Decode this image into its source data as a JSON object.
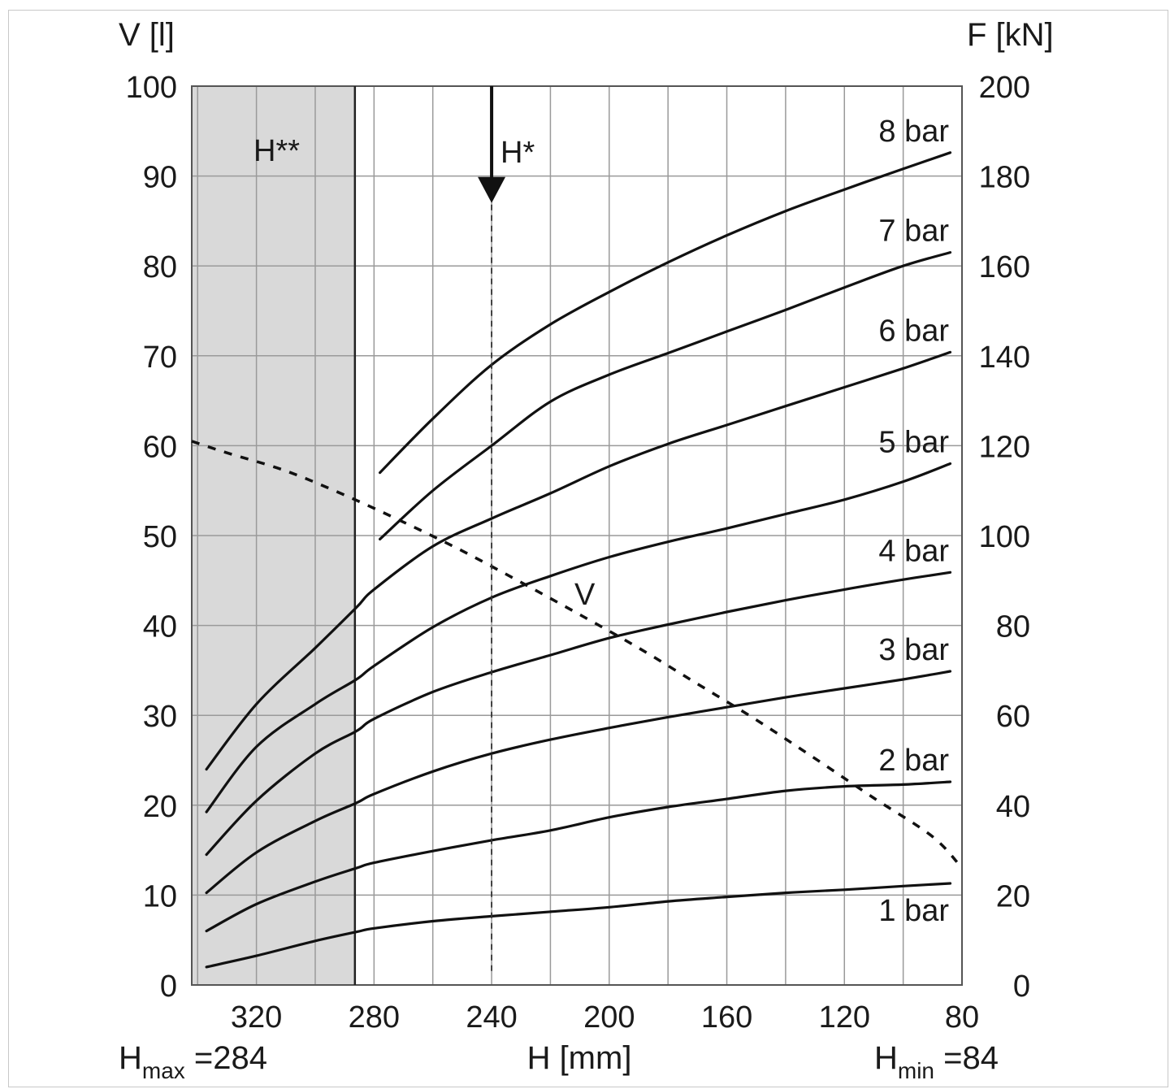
{
  "chart_data": {
    "type": "line",
    "title": "",
    "xlabel": "H [mm]",
    "ylabel_left": "V [l]",
    "ylabel_right": "F [kN]",
    "x_reversed": true,
    "xlim": [
      342,
      80
    ],
    "ylim_left": [
      0,
      100
    ],
    "ylim_right": [
      0,
      200
    ],
    "grid": true,
    "x_ticks": [
      320,
      280,
      240,
      200,
      160,
      120,
      80
    ],
    "y_left_ticks": [
      0,
      10,
      20,
      30,
      40,
      50,
      60,
      70,
      80,
      90,
      100
    ],
    "y_right_ticks": [
      0,
      20,
      40,
      60,
      80,
      100,
      120,
      140,
      160,
      180,
      200
    ],
    "shaded_region": {
      "label": "H**",
      "x_from": 342,
      "x_to": 286.5,
      "color": "#d9d9d9"
    },
    "h_star": {
      "label": "H*",
      "x": 240,
      "arrow_from_y": 100,
      "arrow_to_y": 87,
      "dashed_to_y": 1.5
    },
    "volume_curve": {
      "name": "V",
      "axis": "left",
      "style": "dashed",
      "x": [
        342,
        330,
        310,
        290,
        270,
        250,
        230,
        210,
        190,
        170,
        150,
        130,
        110,
        90,
        80
      ],
      "values": [
        60.5,
        59.2,
        57.2,
        54.5,
        51.5,
        48.3,
        44.8,
        41.2,
        37.5,
        33.5,
        29.5,
        25.2,
        20.8,
        16.5,
        13.0
      ]
    },
    "series": [
      {
        "name": "1 bar",
        "axis": "right",
        "x": [
          337,
          320,
          300,
          286,
          280,
          260,
          240,
          220,
          200,
          180,
          160,
          140,
          120,
          100,
          84
        ],
        "values": [
          4,
          6.5,
          9.8,
          11.8,
          12.6,
          14.2,
          15.3,
          16.3,
          17.3,
          18.6,
          19.6,
          20.5,
          21.2,
          22.0,
          22.6
        ]
      },
      {
        "name": "2 bar",
        "axis": "right",
        "x": [
          337,
          320,
          300,
          286,
          280,
          260,
          240,
          220,
          200,
          180,
          160,
          140,
          120,
          100,
          84
        ],
        "values": [
          12,
          18,
          23,
          26,
          27.2,
          29.8,
          32.2,
          34.4,
          37.3,
          39.6,
          41.4,
          43.2,
          44.2,
          44.6,
          45.2
        ]
      },
      {
        "name": "3 bar",
        "axis": "right",
        "x": [
          337,
          320,
          300,
          286,
          280,
          260,
          240,
          220,
          200,
          180,
          160,
          140,
          120,
          100,
          84
        ],
        "values": [
          20.5,
          29.5,
          36.5,
          40.5,
          42.5,
          47.5,
          51.5,
          54.6,
          57.2,
          59.6,
          61.8,
          64.0,
          66.0,
          68.0,
          69.8
        ]
      },
      {
        "name": "4 bar",
        "axis": "right",
        "x": [
          337,
          320,
          300,
          286,
          280,
          260,
          240,
          220,
          200,
          180,
          160,
          140,
          120,
          100,
          84
        ],
        "values": [
          29,
          41,
          51.5,
          56.5,
          59.2,
          65.2,
          69.6,
          73.4,
          77.2,
          80.2,
          83.0,
          85.6,
          88.0,
          90.2,
          91.8
        ]
      },
      {
        "name": "5 bar",
        "axis": "right",
        "x": [
          337,
          320,
          300,
          286,
          280,
          260,
          240,
          220,
          200,
          180,
          160,
          140,
          120,
          100,
          84
        ],
        "values": [
          38.5,
          53,
          62.5,
          68,
          71.0,
          79.6,
          86.2,
          91.0,
          95.2,
          98.6,
          101.6,
          104.8,
          108.0,
          112.0,
          116.0
        ]
      },
      {
        "name": "6 bar",
        "axis": "right",
        "x": [
          337,
          320,
          300,
          286,
          280,
          260,
          240,
          220,
          200,
          180,
          160,
          140,
          120,
          100,
          84
        ],
        "values": [
          48,
          62.5,
          75,
          84,
          88.0,
          97.6,
          103.8,
          109.4,
          115.4,
          120.4,
          124.6,
          128.8,
          133.0,
          137.2,
          140.8
        ]
      },
      {
        "name": "7 bar",
        "axis": "right",
        "x": [
          278,
          260,
          240,
          220,
          200,
          180,
          160,
          140,
          120,
          100,
          84
        ],
        "values": [
          99.2,
          110,
          120,
          129.8,
          135.8,
          140.6,
          145.4,
          150.2,
          155.2,
          160.0,
          163.0
        ]
      },
      {
        "name": "8 bar",
        "axis": "right",
        "x": [
          278,
          260,
          240,
          220,
          200,
          180,
          160,
          140,
          120,
          100,
          84
        ],
        "values": [
          114,
          126,
          138,
          147,
          154.2,
          160.8,
          166.8,
          172.2,
          177.0,
          181.6,
          185.2
        ]
      }
    ],
    "annotations": {
      "hmax": {
        "main": "H",
        "sub": "max",
        "value": " =284"
      },
      "hmin": {
        "main": "H",
        "sub": "min",
        "value": " =84"
      }
    }
  }
}
